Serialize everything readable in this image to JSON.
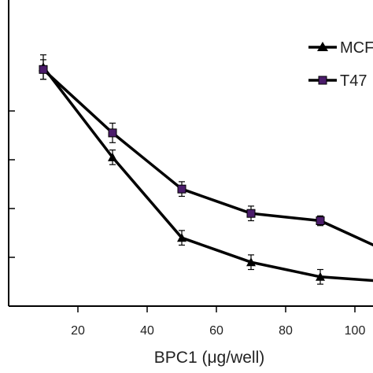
{
  "chart_data": {
    "type": "line",
    "xlabel": "BPC1 (μg/well)",
    "ylabel": "",
    "xlim": [
      0,
      110
    ],
    "ylim": [
      0,
      100
    ],
    "x_ticks": [
      20,
      40,
      60,
      80,
      100
    ],
    "y_ticks": [
      20,
      40,
      60,
      80
    ],
    "grid": false,
    "legend_position": "top-right",
    "series": [
      {
        "name": "MCF",
        "marker": "triangle",
        "color": "#000000",
        "x": [
          10,
          30,
          50,
          70,
          90,
          110
        ],
        "y": [
          98,
          61,
          28,
          18,
          12,
          10
        ],
        "err": [
          5,
          3,
          3,
          3,
          3,
          0
        ]
      },
      {
        "name": "T47",
        "marker": "square",
        "color": "#4b1c6b",
        "x": [
          10,
          30,
          50,
          70,
          90,
          110
        ],
        "y": [
          97,
          71,
          48,
          38,
          35,
          22
        ],
        "err": [
          4,
          4,
          3,
          3,
          2,
          0
        ]
      }
    ]
  }
}
